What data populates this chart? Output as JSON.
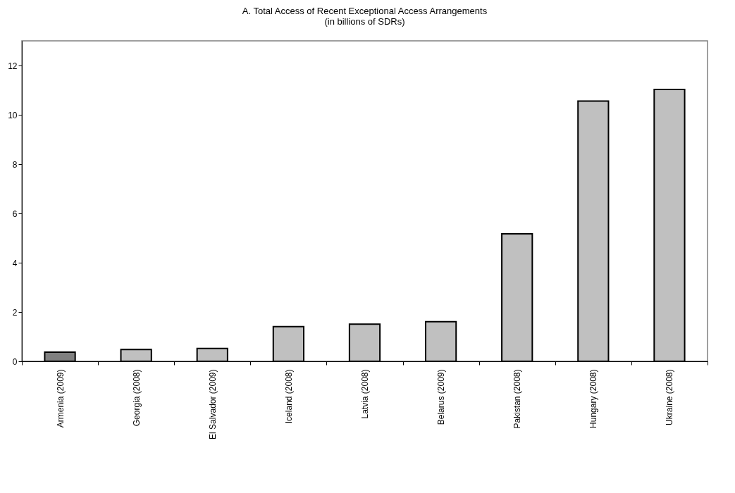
{
  "chart_data": {
    "type": "bar",
    "title": "A. Total Access of Recent Exceptional Access Arrangements",
    "subtitle": "(in billions of SDRs)",
    "categories": [
      "Armenia (2009)",
      "Georgia (2008)",
      "El Salvador (2009)",
      "Iceland (2008)",
      "Latvia (2008)",
      "Belarus (2009)",
      "Pakistan (2008)",
      "Hungary (2008)",
      "Ukraine (2008)"
    ],
    "values": [
      0.37,
      0.48,
      0.52,
      1.41,
      1.51,
      1.61,
      5.17,
      10.56,
      11.03
    ],
    "colors": [
      "#808080",
      "#c0c0c0",
      "#c0c0c0",
      "#c0c0c0",
      "#c0c0c0",
      "#c0c0c0",
      "#c0c0c0",
      "#c0c0c0",
      "#c0c0c0"
    ],
    "ylim": [
      0,
      13
    ],
    "yticks": [
      0,
      2,
      4,
      6,
      8,
      10,
      12
    ],
    "grid": false
  }
}
